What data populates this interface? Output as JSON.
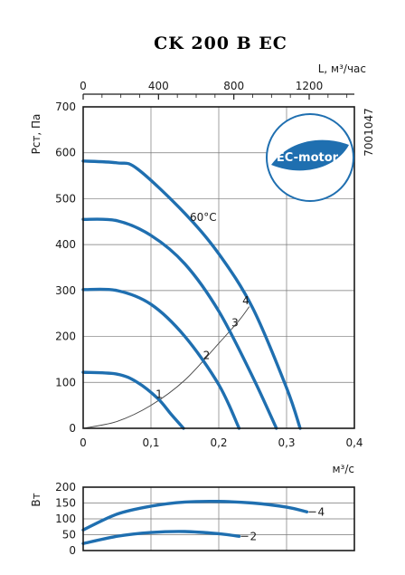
{
  "chart_data": [
    {
      "type": "line",
      "title": "CK 200 B EC",
      "xlabel": "м³/с",
      "ylabel": "Pст, Па",
      "xlim": [
        0,
        0.4
      ],
      "ylim": [
        0,
        700
      ],
      "x_ticks": [
        "0",
        "0,1",
        "0,2",
        "0,3",
        "0,4"
      ],
      "y_ticks": [
        "0",
        "100",
        "200",
        "300",
        "400",
        "500",
        "600",
        "700"
      ],
      "secondary_x": {
        "label": "L, м³/час",
        "ticks": [
          "0",
          "400",
          "800",
          "1200"
        ],
        "lim": [
          0,
          1440
        ]
      },
      "code": "7001047",
      "badge": "EC-motor",
      "temperature_note": "60°C",
      "series": [
        {
          "name": "1",
          "x": [
            0,
            0.05,
            0.08,
            0.11,
            0.13,
            0.148
          ],
          "y": [
            122,
            118,
            100,
            65,
            30,
            0
          ]
        },
        {
          "name": "2",
          "x": [
            0,
            0.05,
            0.1,
            0.15,
            0.2,
            0.23
          ],
          "y": [
            302,
            300,
            270,
            200,
            95,
            0
          ]
        },
        {
          "name": "3",
          "x": [
            0,
            0.05,
            0.1,
            0.15,
            0.2,
            0.25,
            0.285
          ],
          "y": [
            455,
            452,
            420,
            358,
            255,
            112,
            0
          ]
        },
        {
          "name": "4",
          "x": [
            0,
            0.05,
            0.08,
            0.15,
            0.2,
            0.25,
            0.3,
            0.32
          ],
          "y": [
            582,
            578,
            565,
            468,
            380,
            262,
            88,
            0
          ]
        }
      ],
      "system_curve": {
        "x": [
          0,
          0.05,
          0.1,
          0.15,
          0.2,
          0.23,
          0.245
        ],
        "y": [
          0,
          15,
          50,
          105,
          185,
          235,
          265
        ]
      }
    },
    {
      "type": "line",
      "ylabel": "Вт",
      "xlim": [
        0,
        0.4
      ],
      "ylim": [
        0,
        200
      ],
      "y_ticks": [
        "0",
        "50",
        "100",
        "150",
        "200"
      ],
      "series": [
        {
          "name": "4",
          "x": [
            0,
            0.05,
            0.1,
            0.15,
            0.2,
            0.25,
            0.3,
            0.33
          ],
          "y": [
            65,
            115,
            140,
            153,
            155,
            150,
            137,
            122
          ]
        },
        {
          "name": "2",
          "x": [
            0,
            0.05,
            0.1,
            0.15,
            0.2,
            0.23
          ],
          "y": [
            22,
            45,
            57,
            60,
            53,
            45
          ]
        }
      ]
    }
  ]
}
